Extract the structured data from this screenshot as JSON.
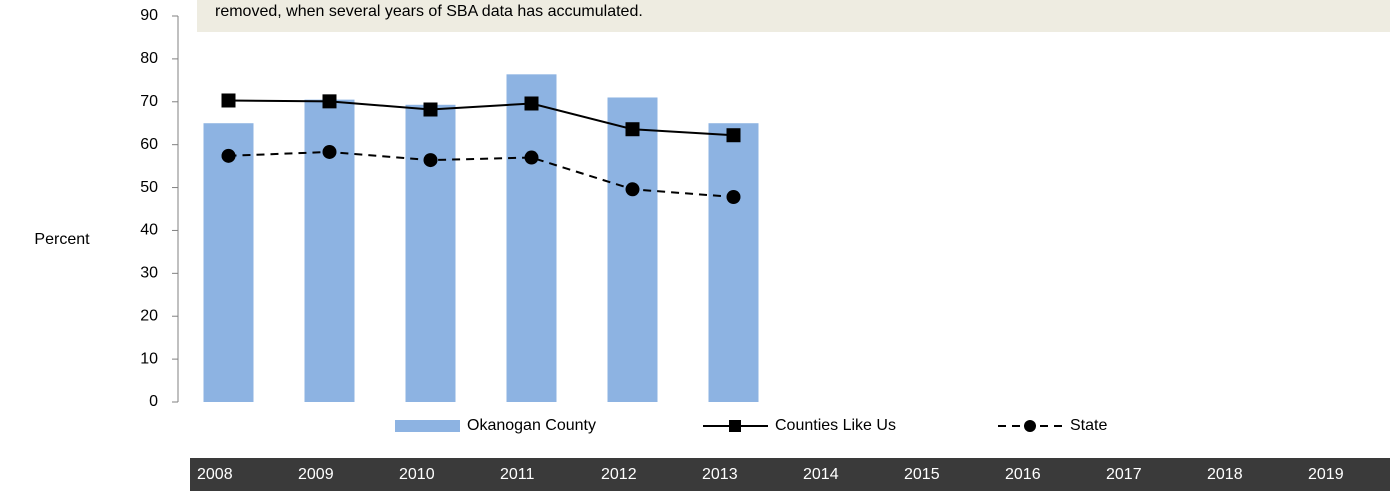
{
  "chart_data": {
    "type": "bar_line",
    "annotation": "removed, when several years of  SBA data has accumulated.",
    "y_label": "Percent",
    "categories": [
      "2008",
      "2009",
      "2010",
      "2011",
      "2012",
      "2013",
      "2014",
      "2015",
      "2016",
      "2017",
      "2018",
      "2019"
    ],
    "series": [
      {
        "name": "Okanogan County",
        "type": "bar",
        "color": "#8db3e2",
        "values": [
          65,
          70.5,
          69.3,
          76.4,
          71,
          65,
          null,
          null,
          null,
          null,
          null,
          null
        ]
      },
      {
        "name": "Counties Like Us",
        "type": "line",
        "marker": "square",
        "dashed": false,
        "color": "#000000",
        "values": [
          70.3,
          70.1,
          68.2,
          69.6,
          63.6,
          62.2,
          null,
          null,
          null,
          null,
          null,
          null
        ]
      },
      {
        "name": "State",
        "type": "line",
        "marker": "circle",
        "dashed": true,
        "color": "#000000",
        "values": [
          57.4,
          58.3,
          56.4,
          57,
          49.6,
          47.8,
          null,
          null,
          null,
          null,
          null,
          null
        ]
      }
    ],
    "ylim": [
      0,
      90
    ],
    "yticks": [
      0,
      10,
      20,
      30,
      40,
      50,
      60,
      70,
      80,
      90
    ]
  }
}
